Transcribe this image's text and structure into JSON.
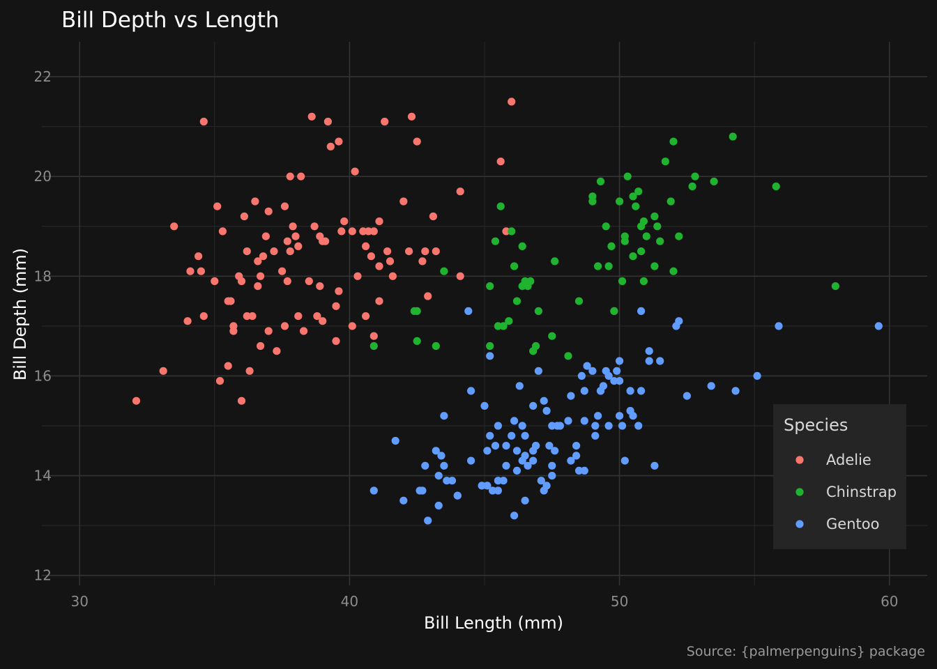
{
  "chart_data": {
    "type": "scatter",
    "title": "Bill Depth vs Length",
    "xlabel": "Bill Length (mm)",
    "ylabel": "Bill Depth (mm)",
    "caption": "Source: {palmerpenguins} package",
    "xlim": [
      28.6,
      61.4
    ],
    "ylim": [
      11.8,
      22.7
    ],
    "x_ticks": [
      30,
      40,
      50,
      60
    ],
    "y_ticks": [
      12,
      14,
      16,
      18,
      20,
      22
    ],
    "grid": true,
    "legend": {
      "title": "Species",
      "position": "bottom-right"
    },
    "series": [
      {
        "name": "Adelie",
        "color": "#F8766D",
        "points": [
          [
            32.1,
            15.5
          ],
          [
            33.1,
            16.1
          ],
          [
            33.5,
            19.0
          ],
          [
            34.0,
            17.1
          ],
          [
            34.1,
            18.1
          ],
          [
            34.4,
            18.4
          ],
          [
            34.5,
            18.1
          ],
          [
            34.6,
            21.1
          ],
          [
            34.6,
            17.2
          ],
          [
            35.0,
            17.9
          ],
          [
            35.1,
            19.4
          ],
          [
            35.2,
            15.9
          ],
          [
            35.3,
            18.9
          ],
          [
            35.5,
            16.2
          ],
          [
            35.5,
            17.5
          ],
          [
            35.6,
            17.5
          ],
          [
            35.7,
            16.9
          ],
          [
            35.7,
            17.0
          ],
          [
            35.9,
            18.0
          ],
          [
            36.0,
            15.5
          ],
          [
            36.1,
            19.2
          ],
          [
            36.2,
            17.2
          ],
          [
            36.2,
            18.5
          ],
          [
            36.3,
            16.1
          ],
          [
            36.4,
            17.2
          ],
          [
            36.5,
            19.5
          ],
          [
            36.6,
            18.3
          ],
          [
            36.7,
            16.6
          ],
          [
            36.7,
            18.0
          ],
          [
            36.8,
            18.4
          ],
          [
            36.9,
            18.8
          ],
          [
            37.0,
            19.3
          ],
          [
            37.0,
            16.9
          ],
          [
            37.2,
            18.5
          ],
          [
            37.3,
            16.5
          ],
          [
            37.5,
            18.1
          ],
          [
            37.6,
            19.4
          ],
          [
            37.7,
            17.9
          ],
          [
            37.8,
            18.5
          ],
          [
            37.9,
            19.0
          ],
          [
            37.8,
            20.0
          ],
          [
            38.0,
            18.8
          ],
          [
            38.1,
            18.6
          ],
          [
            38.1,
            17.2
          ],
          [
            38.2,
            20.0
          ],
          [
            38.3,
            16.9
          ],
          [
            38.6,
            21.2
          ],
          [
            38.7,
            19.0
          ],
          [
            38.8,
            17.2
          ],
          [
            38.9,
            18.8
          ],
          [
            39.0,
            18.7
          ],
          [
            39.1,
            18.7
          ],
          [
            39.2,
            21.1
          ],
          [
            39.3,
            20.6
          ],
          [
            39.5,
            17.4
          ],
          [
            39.6,
            20.7
          ],
          [
            39.7,
            18.9
          ],
          [
            39.8,
            19.1
          ],
          [
            40.1,
            18.9
          ],
          [
            40.2,
            20.1
          ],
          [
            40.3,
            18.0
          ],
          [
            40.5,
            18.9
          ],
          [
            40.6,
            18.6
          ],
          [
            40.7,
            18.9
          ],
          [
            40.8,
            18.4
          ],
          [
            40.9,
            18.9
          ],
          [
            41.1,
            18.2
          ],
          [
            41.1,
            19.1
          ],
          [
            41.3,
            21.1
          ],
          [
            41.4,
            18.5
          ],
          [
            41.5,
            18.3
          ],
          [
            41.6,
            18.0
          ],
          [
            42.0,
            19.5
          ],
          [
            42.2,
            18.5
          ],
          [
            42.3,
            21.2
          ],
          [
            42.5,
            20.7
          ],
          [
            42.8,
            18.5
          ],
          [
            43.1,
            19.2
          ],
          [
            43.2,
            18.5
          ],
          [
            44.1,
            19.7
          ],
          [
            44.1,
            18.0
          ],
          [
            45.6,
            20.3
          ],
          [
            45.8,
            18.9
          ],
          [
            46.0,
            21.5
          ],
          [
            36.6,
            17.8
          ],
          [
            37.7,
            18.7
          ],
          [
            38.5,
            17.9
          ],
          [
            39.6,
            17.7
          ],
          [
            40.6,
            17.2
          ],
          [
            41.1,
            17.5
          ],
          [
            42.7,
            18.3
          ],
          [
            39.0,
            17.1
          ],
          [
            38.9,
            17.8
          ],
          [
            39.5,
            16.7
          ],
          [
            40.9,
            16.8
          ],
          [
            37.6,
            17.0
          ],
          [
            36.0,
            17.9
          ],
          [
            42.9,
            17.6
          ],
          [
            40.1,
            17.0
          ]
        ]
      },
      {
        "name": "Chinstrap",
        "color": "#1FB32F",
        "points": [
          [
            40.9,
            16.6
          ],
          [
            42.4,
            17.3
          ],
          [
            42.5,
            17.3
          ],
          [
            42.5,
            16.7
          ],
          [
            43.2,
            16.6
          ],
          [
            43.5,
            18.1
          ],
          [
            45.2,
            16.6
          ],
          [
            45.2,
            17.8
          ],
          [
            45.4,
            18.7
          ],
          [
            45.6,
            19.4
          ],
          [
            45.7,
            17.0
          ],
          [
            45.9,
            17.1
          ],
          [
            46.0,
            18.9
          ],
          [
            46.1,
            18.2
          ],
          [
            46.2,
            17.5
          ],
          [
            46.4,
            18.6
          ],
          [
            46.5,
            17.9
          ],
          [
            46.6,
            17.8
          ],
          [
            46.7,
            17.9
          ],
          [
            46.8,
            16.5
          ],
          [
            46.9,
            16.6
          ],
          [
            47.0,
            17.3
          ],
          [
            47.5,
            16.8
          ],
          [
            47.6,
            18.3
          ],
          [
            48.1,
            16.4
          ],
          [
            48.5,
            17.5
          ],
          [
            49.0,
            19.5
          ],
          [
            49.0,
            19.6
          ],
          [
            49.2,
            18.2
          ],
          [
            49.3,
            19.9
          ],
          [
            49.5,
            19.0
          ],
          [
            49.6,
            18.2
          ],
          [
            49.7,
            18.6
          ],
          [
            49.8,
            17.3
          ],
          [
            50.0,
            19.5
          ],
          [
            50.1,
            17.9
          ],
          [
            50.2,
            18.8
          ],
          [
            50.3,
            20.0
          ],
          [
            50.5,
            18.4
          ],
          [
            50.5,
            19.6
          ],
          [
            50.6,
            19.4
          ],
          [
            50.7,
            19.7
          ],
          [
            50.8,
            18.5
          ],
          [
            50.9,
            19.1
          ],
          [
            51.0,
            18.8
          ],
          [
            51.3,
            18.2
          ],
          [
            51.3,
            19.2
          ],
          [
            51.4,
            19.0
          ],
          [
            51.5,
            18.7
          ],
          [
            51.7,
            20.3
          ],
          [
            51.9,
            19.5
          ],
          [
            52.0,
            18.1
          ],
          [
            52.0,
            20.7
          ],
          [
            52.2,
            18.8
          ],
          [
            52.7,
            19.8
          ],
          [
            52.8,
            20.0
          ],
          [
            53.5,
            19.9
          ],
          [
            54.2,
            20.8
          ],
          [
            55.8,
            19.8
          ],
          [
            58.0,
            17.8
          ],
          [
            45.5,
            17.0
          ],
          [
            46.4,
            17.8
          ],
          [
            50.8,
            19.0
          ],
          [
            50.2,
            18.7
          ],
          [
            50.9,
            17.9
          ],
          [
            49.8,
            17.3
          ]
        ]
      },
      {
        "name": "Gentoo",
        "color": "#619CFF",
        "points": [
          [
            40.9,
            13.7
          ],
          [
            41.7,
            14.7
          ],
          [
            42.0,
            13.5
          ],
          [
            42.6,
            13.7
          ],
          [
            42.7,
            13.7
          ],
          [
            42.8,
            14.2
          ],
          [
            42.9,
            13.1
          ],
          [
            43.2,
            14.5
          ],
          [
            43.3,
            13.4
          ],
          [
            43.3,
            14.0
          ],
          [
            43.4,
            14.4
          ],
          [
            43.5,
            15.2
          ],
          [
            43.5,
            14.2
          ],
          [
            43.6,
            13.9
          ],
          [
            43.8,
            13.9
          ],
          [
            44.0,
            13.6
          ],
          [
            44.4,
            17.3
          ],
          [
            44.5,
            14.3
          ],
          [
            44.5,
            15.7
          ],
          [
            44.9,
            13.8
          ],
          [
            45.0,
            15.4
          ],
          [
            45.1,
            14.5
          ],
          [
            45.2,
            14.8
          ],
          [
            45.2,
            16.4
          ],
          [
            45.3,
            13.7
          ],
          [
            45.4,
            14.6
          ],
          [
            45.5,
            13.7
          ],
          [
            45.5,
            13.9
          ],
          [
            45.7,
            13.9
          ],
          [
            45.8,
            14.2
          ],
          [
            46.1,
            13.2
          ],
          [
            46.1,
            15.1
          ],
          [
            46.2,
            14.5
          ],
          [
            46.2,
            14.1
          ],
          [
            46.3,
            15.8
          ],
          [
            46.4,
            15.0
          ],
          [
            46.4,
            14.3
          ],
          [
            46.5,
            14.8
          ],
          [
            46.5,
            13.5
          ],
          [
            46.6,
            14.2
          ],
          [
            46.8,
            14.3
          ],
          [
            46.8,
            15.4
          ],
          [
            46.9,
            14.6
          ],
          [
            47.2,
            15.5
          ],
          [
            47.3,
            15.3
          ],
          [
            47.4,
            14.6
          ],
          [
            47.5,
            14.2
          ],
          [
            47.5,
            15.0
          ],
          [
            47.6,
            14.5
          ],
          [
            47.7,
            15.0
          ],
          [
            47.8,
            15.0
          ],
          [
            48.1,
            15.1
          ],
          [
            48.2,
            14.3
          ],
          [
            48.2,
            15.6
          ],
          [
            48.4,
            14.4
          ],
          [
            48.4,
            14.6
          ],
          [
            48.5,
            14.1
          ],
          [
            48.7,
            14.1
          ],
          [
            48.7,
            15.1
          ],
          [
            48.8,
            16.2
          ],
          [
            49.0,
            16.1
          ],
          [
            49.1,
            14.8
          ],
          [
            49.1,
            15.0
          ],
          [
            49.2,
            15.2
          ],
          [
            49.3,
            15.7
          ],
          [
            49.4,
            15.8
          ],
          [
            49.5,
            16.1
          ],
          [
            49.6,
            15.0
          ],
          [
            49.6,
            16.0
          ],
          [
            49.8,
            15.9
          ],
          [
            49.9,
            16.1
          ],
          [
            50.0,
            15.2
          ],
          [
            50.0,
            15.9
          ],
          [
            50.1,
            15.0
          ],
          [
            50.2,
            14.3
          ],
          [
            50.4,
            15.3
          ],
          [
            50.5,
            15.2
          ],
          [
            50.7,
            15.0
          ],
          [
            50.8,
            15.7
          ],
          [
            50.8,
            17.3
          ],
          [
            51.1,
            16.3
          ],
          [
            51.1,
            16.5
          ],
          [
            51.3,
            14.2
          ],
          [
            51.5,
            16.3
          ],
          [
            52.1,
            17.0
          ],
          [
            52.2,
            17.1
          ],
          [
            52.5,
            15.6
          ],
          [
            53.4,
            15.8
          ],
          [
            54.3,
            15.7
          ],
          [
            55.1,
            16.0
          ],
          [
            55.9,
            17.0
          ],
          [
            59.6,
            17.0
          ],
          [
            45.1,
            13.8
          ],
          [
            45.8,
            14.6
          ],
          [
            46.5,
            14.4
          ],
          [
            46.9,
            14.6
          ],
          [
            47.0,
            16.1
          ],
          [
            47.2,
            13.7
          ],
          [
            47.3,
            13.8
          ],
          [
            48.6,
            16.0
          ],
          [
            50.4,
            15.7
          ],
          [
            45.5,
            15.0
          ],
          [
            46.0,
            14.8
          ],
          [
            47.5,
            14.0
          ],
          [
            46.8,
            14.5
          ],
          [
            47.1,
            13.9
          ],
          [
            50.0,
            16.3
          ],
          [
            48.7,
            15.7
          ],
          [
            49.3,
            15.7
          ],
          [
            44.0,
            13.6
          ]
        ]
      }
    ]
  }
}
